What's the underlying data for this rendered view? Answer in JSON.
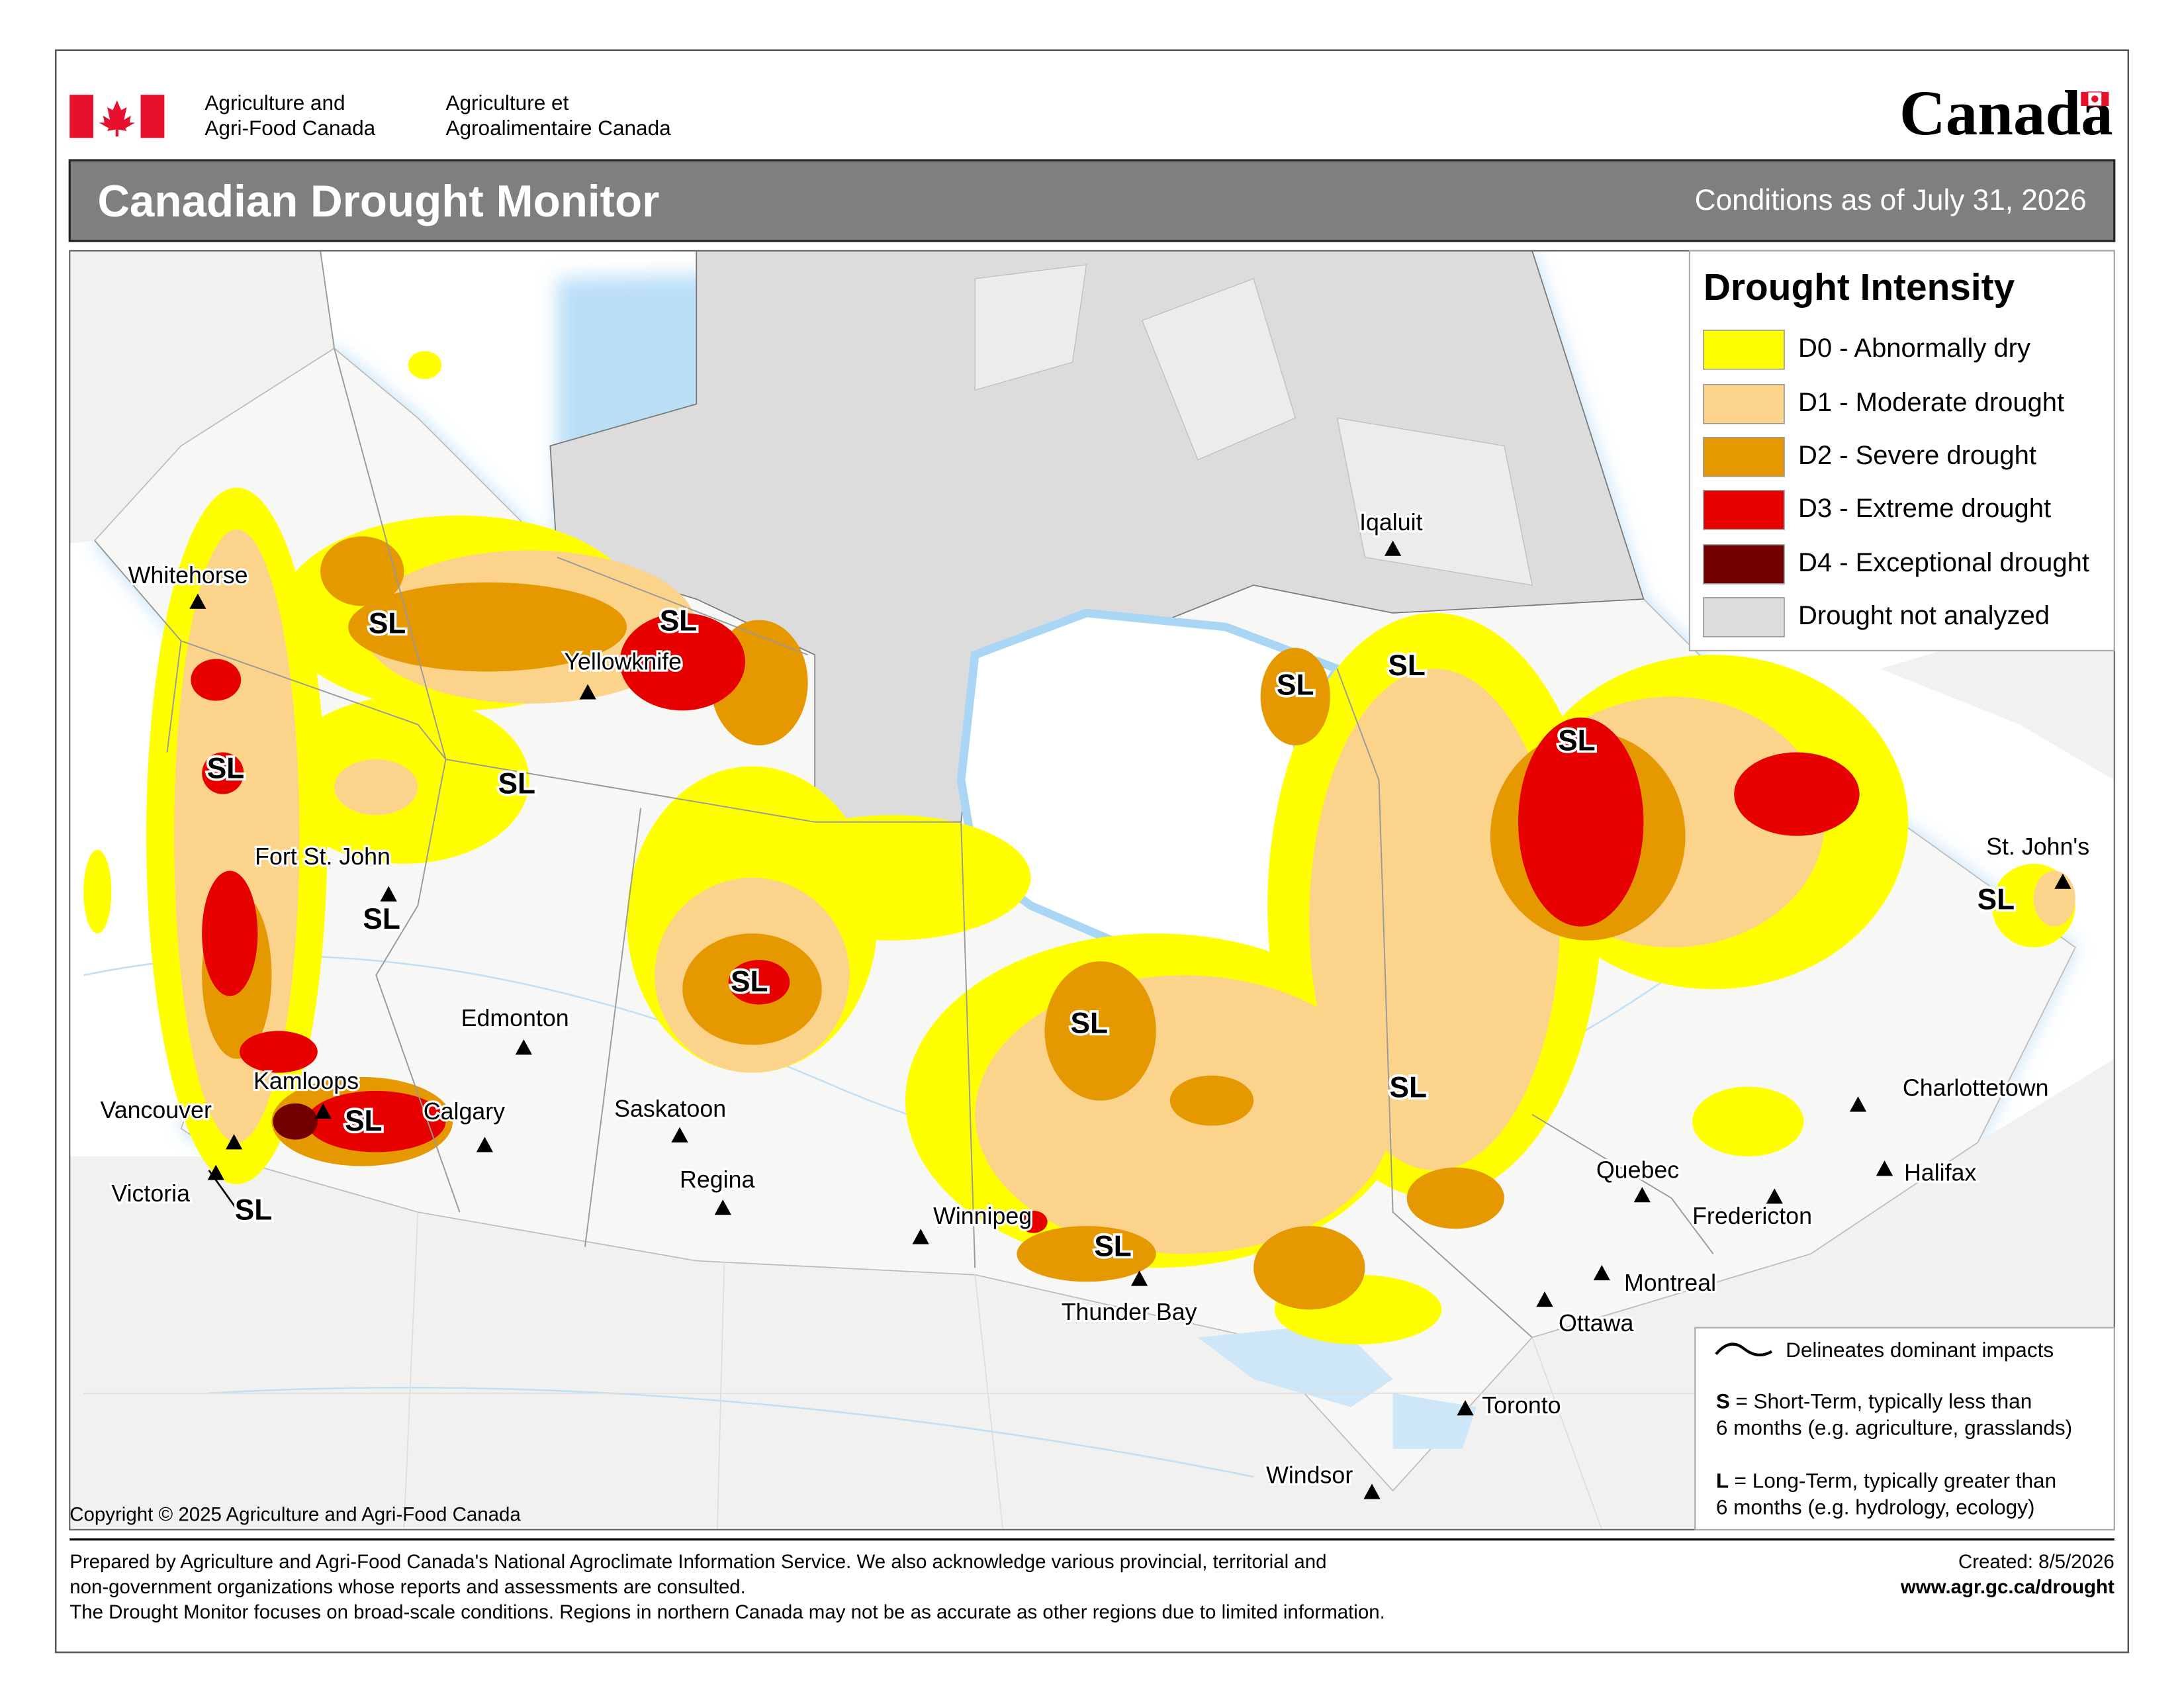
{
  "header": {
    "department_en": [
      "Agriculture and",
      "Agri-Food Canada"
    ],
    "department_fr": [
      "Agriculture et",
      "Agroalimentaire Canada"
    ],
    "wordmark": "Canada",
    "title": "Canadian Drought Monitor",
    "date": "Conditions as of July 31, 2026"
  },
  "legend": {
    "title": "Drought Intensity",
    "items": [
      {
        "label": "D0 - Abnormally dry",
        "color": "#ffff00"
      },
      {
        "label": "D1 - Moderate drought",
        "color": "#fcd38b"
      },
      {
        "label": "D2 - Severe drought",
        "color": "#e69800"
      },
      {
        "label": "D3 - Extreme drought",
        "color": "#e60000"
      },
      {
        "label": "D4 - Exceptional drought",
        "color": "#730000"
      },
      {
        "label": "Drought not analyzed",
        "color": "#dcdcdc"
      }
    ]
  },
  "map": {
    "cities": [
      "Whitehorse",
      "Yellowknife",
      "Fort St. John",
      "Edmonton",
      "Kamloops",
      "Vancouver",
      "Victoria",
      "Calgary",
      "Saskatoon",
      "Regina",
      "Winnipeg",
      "Thunder Bay",
      "Iqaluit",
      "Quebec",
      "Montreal",
      "Ottawa",
      "Toronto",
      "Windsor",
      "Fredericton",
      "Halifax",
      "Charlottetown",
      "St. John's"
    ],
    "impact_labels": [
      "SL",
      "SL",
      "SL",
      "SL",
      "SL",
      "SL",
      "SL",
      "SL",
      "SL",
      "SL",
      "SL",
      "SL",
      "SL",
      "SL",
      "SL"
    ],
    "copyright": "Copyright © 2025 Agriculture and Agri-Food Canada"
  },
  "impacts_note": {
    "line": "Delineates dominant impacts",
    "short_key": "S",
    "short_text": "= Short-Term, typically less than",
    "short_text_2": "6 months (e.g. agriculture, grasslands)",
    "long_key": "L",
    "long_text": "= Long-Term, typically greater  than",
    "long_text_2": "6 months (e.g. hydrology, ecology)"
  },
  "footer": {
    "lines": [
      "Prepared by Agriculture and Agri-Food Canada's National Agroclimate Information Service.  We also acknowledge various provincial, territorial and",
      "non-government organizations whose reports and assessments are consulted.",
      "The Drought Monitor focuses on broad-scale conditions.  Regions in northern Canada may not be as accurate as other regions due to limited information."
    ],
    "created": "Created: 8/5/2026",
    "url": "www.agr.gc.ca/drought"
  }
}
